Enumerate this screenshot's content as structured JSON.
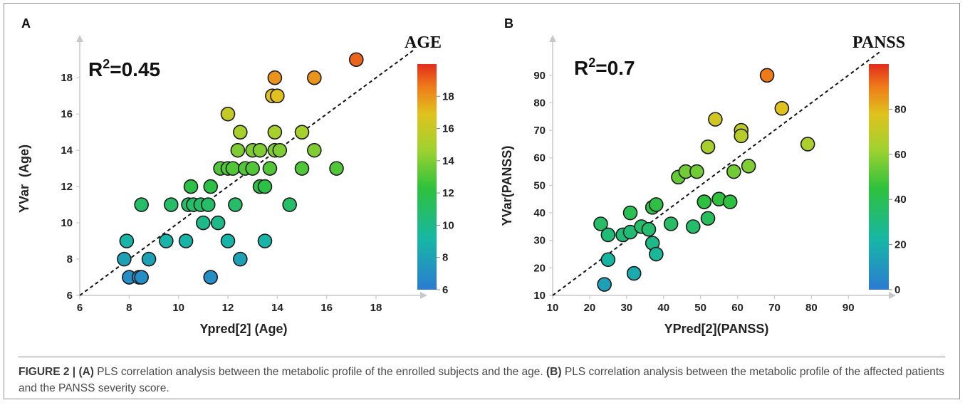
{
  "figure": {
    "caption_label": "FIGURE 2 |",
    "caption_a_tag": "(A)",
    "caption_a_text": " PLS correlation analysis between the metabolic profile of the enrolled subjects and the age. ",
    "caption_b_tag": "(B)",
    "caption_b_text": " PLS correlation analysis between the metabolic profile of the affected patients and the PANSS severity score."
  },
  "chart_data": [
    {
      "type": "scatter",
      "panel_label": "A",
      "title": "AGE",
      "r2_base": "R",
      "r2_exp": "2",
      "r2_value": "=0.45",
      "xlabel": "Ypred[2] (Age)",
      "ylabel": "YVar  (Age)",
      "xlim": [
        6,
        19.5
      ],
      "ylim": [
        6,
        19.5
      ],
      "xticks": [
        6,
        8,
        10,
        12,
        14,
        16,
        18
      ],
      "yticks": [
        6,
        8,
        10,
        12,
        14,
        16,
        18
      ],
      "reference_line": "y = x (dashed)",
      "colorbar": {
        "min": 6,
        "max": 20,
        "ticks": [
          6,
          8,
          10,
          12,
          14,
          16,
          18
        ],
        "colormap": "blue-green-yellow-red"
      },
      "points": [
        {
          "x": 7.8,
          "y": 8
        },
        {
          "x": 7.9,
          "y": 9
        },
        {
          "x": 8.0,
          "y": 7
        },
        {
          "x": 8.4,
          "y": 7
        },
        {
          "x": 8.5,
          "y": 7
        },
        {
          "x": 8.5,
          "y": 11
        },
        {
          "x": 8.8,
          "y": 8
        },
        {
          "x": 9.5,
          "y": 9
        },
        {
          "x": 9.7,
          "y": 11
        },
        {
          "x": 10.3,
          "y": 9
        },
        {
          "x": 10.4,
          "y": 11
        },
        {
          "x": 10.5,
          "y": 12
        },
        {
          "x": 10.6,
          "y": 11
        },
        {
          "x": 10.9,
          "y": 11
        },
        {
          "x": 11.0,
          "y": 10
        },
        {
          "x": 11.2,
          "y": 11
        },
        {
          "x": 11.3,
          "y": 12
        },
        {
          "x": 11.3,
          "y": 7
        },
        {
          "x": 11.6,
          "y": 10
        },
        {
          "x": 11.7,
          "y": 13
        },
        {
          "x": 12.0,
          "y": 16
        },
        {
          "x": 12.0,
          "y": 13
        },
        {
          "x": 12.0,
          "y": 9
        },
        {
          "x": 12.2,
          "y": 13
        },
        {
          "x": 12.3,
          "y": 11
        },
        {
          "x": 12.4,
          "y": 14
        },
        {
          "x": 12.5,
          "y": 15
        },
        {
          "x": 12.5,
          "y": 8
        },
        {
          "x": 12.7,
          "y": 13
        },
        {
          "x": 13.0,
          "y": 13
        },
        {
          "x": 13.0,
          "y": 14
        },
        {
          "x": 13.3,
          "y": 14
        },
        {
          "x": 13.3,
          "y": 12
        },
        {
          "x": 13.5,
          "y": 12
        },
        {
          "x": 13.5,
          "y": 9
        },
        {
          "x": 13.7,
          "y": 13
        },
        {
          "x": 13.8,
          "y": 17
        },
        {
          "x": 13.9,
          "y": 18
        },
        {
          "x": 13.9,
          "y": 15
        },
        {
          "x": 13.9,
          "y": 14
        },
        {
          "x": 14.0,
          "y": 17
        },
        {
          "x": 14.1,
          "y": 14
        },
        {
          "x": 14.5,
          "y": 11
        },
        {
          "x": 15.0,
          "y": 15
        },
        {
          "x": 15.0,
          "y": 13
        },
        {
          "x": 15.5,
          "y": 18
        },
        {
          "x": 15.5,
          "y": 14
        },
        {
          "x": 16.4,
          "y": 13
        },
        {
          "x": 17.2,
          "y": 19
        }
      ]
    },
    {
      "type": "scatter",
      "panel_label": "B",
      "title": "PANSS",
      "r2_base": "R",
      "r2_exp": "2",
      "r2_value": "=0.7",
      "xlabel": "YPred[2](PANSS)",
      "ylabel": "YVar(PANSS)",
      "xlim": [
        10,
        99
      ],
      "ylim": [
        10,
        99
      ],
      "xticks": [
        10,
        20,
        30,
        40,
        50,
        60,
        70,
        80,
        90
      ],
      "yticks": [
        10,
        20,
        30,
        40,
        50,
        60,
        70,
        80,
        90
      ],
      "reference_line": "y = x (dashed)",
      "colorbar": {
        "min": 0,
        "max": 100,
        "ticks": [
          0,
          20,
          40,
          60,
          80
        ],
        "colormap": "blue-green-yellow-red"
      },
      "points": [
        {
          "x": 23,
          "y": 36
        },
        {
          "x": 24,
          "y": 14
        },
        {
          "x": 25,
          "y": 32
        },
        {
          "x": 25,
          "y": 23
        },
        {
          "x": 29,
          "y": 32
        },
        {
          "x": 31,
          "y": 40
        },
        {
          "x": 31,
          "y": 33
        },
        {
          "x": 32,
          "y": 18
        },
        {
          "x": 34,
          "y": 35
        },
        {
          "x": 36,
          "y": 34
        },
        {
          "x": 37,
          "y": 42
        },
        {
          "x": 37,
          "y": 29
        },
        {
          "x": 38,
          "y": 43
        },
        {
          "x": 38,
          "y": 25
        },
        {
          "x": 42,
          "y": 36
        },
        {
          "x": 44,
          "y": 53
        },
        {
          "x": 46,
          "y": 55
        },
        {
          "x": 48,
          "y": 35
        },
        {
          "x": 49,
          "y": 55
        },
        {
          "x": 51,
          "y": 44
        },
        {
          "x": 51,
          "y": 44
        },
        {
          "x": 52,
          "y": 64
        },
        {
          "x": 52,
          "y": 38
        },
        {
          "x": 54,
          "y": 74
        },
        {
          "x": 55,
          "y": 45
        },
        {
          "x": 58,
          "y": 44
        },
        {
          "x": 59,
          "y": 55
        },
        {
          "x": 61,
          "y": 70
        },
        {
          "x": 61,
          "y": 68
        },
        {
          "x": 63,
          "y": 57
        },
        {
          "x": 68,
          "y": 90
        },
        {
          "x": 72,
          "y": 78
        },
        {
          "x": 79,
          "y": 65
        }
      ]
    }
  ]
}
